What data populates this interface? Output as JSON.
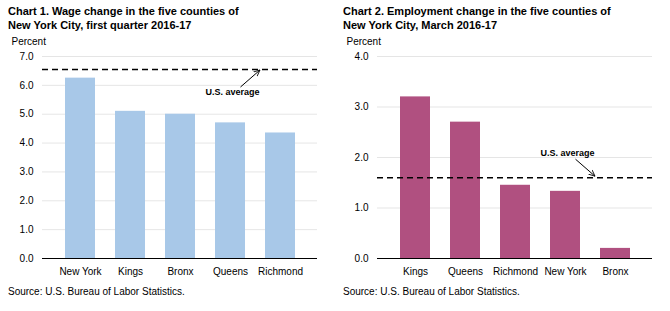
{
  "chart_data": [
    {
      "type": "bar",
      "title": "Chart 1. Wage change in the five counties of\nNew York City, first quarter 2016-17",
      "ylabel": "Percent",
      "categories": [
        "New York",
        "Kings",
        "Bronx",
        "Queens",
        "Richmond"
      ],
      "values": [
        6.25,
        5.1,
        5.0,
        4.7,
        4.35
      ],
      "color": "#a8c8e8",
      "ylim": [
        0,
        7
      ],
      "yticks": [
        0,
        1,
        2,
        3,
        4,
        5,
        6,
        7
      ],
      "grid": true,
      "reference_lines": [
        {
          "y": 6.55,
          "label": "U.S. average",
          "line_style": "dashed"
        }
      ],
      "source": "Source: U.S. Bureau of Labor Statistics."
    },
    {
      "type": "bar",
      "title": "Chart 2. Employment change in the five counties of\nNew York City, March 2016-17",
      "ylabel": "Percent",
      "categories": [
        "Kings",
        "Queens",
        "Richmond",
        "New York",
        "Bronx"
      ],
      "values": [
        3.2,
        2.7,
        1.45,
        1.33,
        0.2
      ],
      "color": "#b05080",
      "ylim": [
        0,
        4
      ],
      "yticks": [
        0,
        1,
        2,
        3,
        4
      ],
      "grid": true,
      "reference_lines": [
        {
          "y": 1.6,
          "label": "U.S. average",
          "line_style": "dashed"
        }
      ],
      "source": "Source: U.S. Bureau of Labor Statistics."
    }
  ]
}
